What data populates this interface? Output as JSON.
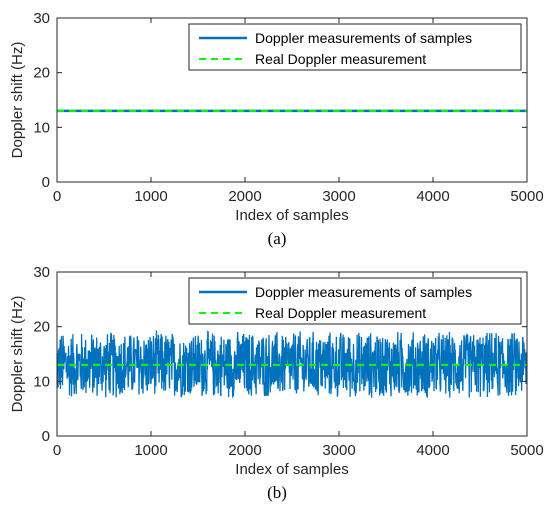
{
  "chart_data": [
    {
      "type": "line",
      "panel": "(a)",
      "xlabel": "Index of samples",
      "ylabel": "Doppler shift (Hz)",
      "xlim": [
        0,
        5000
      ],
      "ylim": [
        0,
        30
      ],
      "xticks": [
        0,
        1000,
        2000,
        3000,
        4000,
        5000
      ],
      "yticks": [
        0,
        10,
        20,
        30
      ],
      "grid": false,
      "legend_position": "top-right",
      "series": [
        {
          "name": "Doppler measurements of samples",
          "style": "solid",
          "color": "#0072bd",
          "x_range": [
            1,
            5000
          ],
          "constant_value": 13,
          "spread": 0
        },
        {
          "name": "Real Doppler measurement",
          "style": "dashed",
          "color": "#00ff00",
          "x_range": [
            1,
            5000
          ],
          "constant_value": 13
        }
      ]
    },
    {
      "type": "line",
      "panel": "(b)",
      "xlabel": "Index of samples",
      "ylabel": "Doppler shift (Hz)",
      "xlim": [
        0,
        5000
      ],
      "ylim": [
        0,
        30
      ],
      "xticks": [
        0,
        1000,
        2000,
        3000,
        4000,
        5000
      ],
      "yticks": [
        0,
        10,
        20,
        30
      ],
      "grid": false,
      "legend_position": "top-right",
      "series": [
        {
          "name": "Doppler measurements of samples",
          "style": "solid",
          "color": "#0072bd",
          "x_range": [
            1,
            5000
          ],
          "mean": 13,
          "min": 6.5,
          "max": 19.5
        },
        {
          "name": "Real Doppler measurement",
          "style": "dashed",
          "color": "#00ff00",
          "x_range": [
            1,
            5000
          ],
          "constant_value": 13
        }
      ]
    }
  ]
}
